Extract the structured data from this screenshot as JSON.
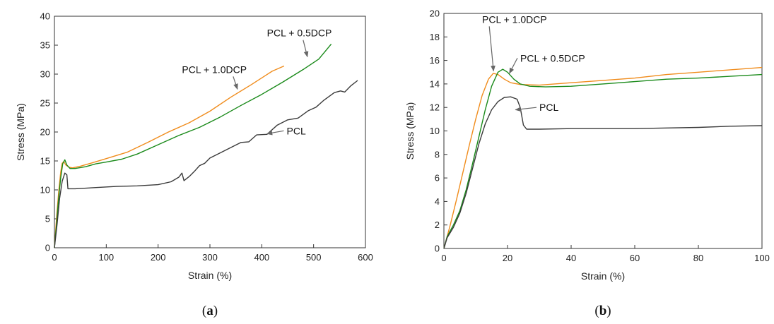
{
  "chart_data": [
    {
      "type": "line",
      "panel_label": {
        "open": "(",
        "letter": "a",
        "close": ")"
      },
      "xlabel": "Strain (%)",
      "ylabel": "Stress (MPa)",
      "xlim": [
        0,
        600
      ],
      "ylim": [
        0,
        40
      ],
      "xticks": [
        0,
        100,
        200,
        300,
        400,
        500,
        600
      ],
      "yticks": [
        0,
        5,
        10,
        15,
        20,
        25,
        30,
        35,
        40
      ],
      "grid": false,
      "series": [
        {
          "name": "PCL + 1.0DCP",
          "color": "#f08c1c",
          "points": [
            [
              0,
              0
            ],
            [
              4,
              5
            ],
            [
              8,
              9.5
            ],
            [
              12,
              13
            ],
            [
              15,
              14.6
            ],
            [
              18,
              14.9
            ],
            [
              22,
              14.3
            ],
            [
              28,
              13.9
            ],
            [
              35,
              13.8
            ],
            [
              50,
              14.1
            ],
            [
              70,
              14.6
            ],
            [
              100,
              15.4
            ],
            [
              140,
              16.5
            ],
            [
              180,
              18.2
            ],
            [
              220,
              20.0
            ],
            [
              260,
              21.6
            ],
            [
              300,
              23.6
            ],
            [
              340,
              26.0
            ],
            [
              380,
              28.2
            ],
            [
              420,
              30.5
            ],
            [
              443,
              31.4
            ]
          ]
        },
        {
          "name": "PCL + 0.5DCP",
          "color": "#1a8a1a",
          "points": [
            [
              0,
              0
            ],
            [
              4,
              4
            ],
            [
              8,
              8.5
            ],
            [
              12,
              12
            ],
            [
              16,
              14.5
            ],
            [
              20,
              15.2
            ],
            [
              24,
              14.3
            ],
            [
              30,
              13.7
            ],
            [
              40,
              13.7
            ],
            [
              60,
              14.0
            ],
            [
              80,
              14.5
            ],
            [
              100,
              14.8
            ],
            [
              130,
              15.3
            ],
            [
              160,
              16.2
            ],
            [
              200,
              17.8
            ],
            [
              240,
              19.4
            ],
            [
              280,
              20.8
            ],
            [
              320,
              22.6
            ],
            [
              360,
              24.6
            ],
            [
              400,
              26.5
            ],
            [
              440,
              28.6
            ],
            [
              480,
              30.8
            ],
            [
              510,
              32.6
            ],
            [
              534,
              35.2
            ]
          ]
        },
        {
          "name": "PCL",
          "color": "#3a3a3a",
          "points": [
            [
              0,
              0
            ],
            [
              5,
              4
            ],
            [
              10,
              8.5
            ],
            [
              15,
              11.5
            ],
            [
              20,
              12.9
            ],
            [
              24,
              12.6
            ],
            [
              26,
              10.2
            ],
            [
              40,
              10.2
            ],
            [
              80,
              10.4
            ],
            [
              120,
              10.6
            ],
            [
              160,
              10.7
            ],
            [
              200,
              10.9
            ],
            [
              225,
              11.4
            ],
            [
              240,
              12.2
            ],
            [
              246,
              12.9
            ],
            [
              250,
              11.6
            ],
            [
              260,
              12.3
            ],
            [
              270,
              13.2
            ],
            [
              280,
              14.2
            ],
            [
              290,
              14.6
            ],
            [
              300,
              15.5
            ],
            [
              320,
              16.4
            ],
            [
              340,
              17.3
            ],
            [
              360,
              18.2
            ],
            [
              375,
              18.3
            ],
            [
              390,
              19.5
            ],
            [
              410,
              19.6
            ],
            [
              430,
              21.2
            ],
            [
              450,
              22.1
            ],
            [
              470,
              22.4
            ],
            [
              490,
              23.7
            ],
            [
              505,
              24.3
            ],
            [
              520,
              25.5
            ],
            [
              540,
              26.8
            ],
            [
              552,
              27.1
            ],
            [
              560,
              26.9
            ],
            [
              572,
              28.0
            ],
            [
              585,
              28.9
            ]
          ]
        }
      ],
      "annotations": [
        {
          "text": "PCL + 0.5DCP",
          "x": 410,
          "y": 36.5,
          "arrow_to": [
            488,
            33.0
          ]
        },
        {
          "text": "PCL + 1.0DCP",
          "x": 246,
          "y": 30.2,
          "arrow_to": [
            353,
            27.4
          ]
        },
        {
          "text": "PCL",
          "x": 448,
          "y": 19.6,
          "arrow_to": [
            410,
            19.7
          ]
        }
      ]
    },
    {
      "type": "line",
      "panel_label": {
        "open": "(",
        "letter": "b",
        "close": ")"
      },
      "xlabel": "Strain (%)",
      "ylabel": "Stress (MPa)",
      "xlim": [
        0,
        100
      ],
      "ylim": [
        0,
        20
      ],
      "xticks": [
        0,
        20,
        40,
        60,
        80,
        100
      ],
      "yticks": [
        0,
        2,
        4,
        6,
        8,
        10,
        12,
        14,
        16,
        18,
        20
      ],
      "grid": false,
      "series": [
        {
          "name": "PCL + 1.0DCP",
          "color": "#f08c1c",
          "points": [
            [
              0,
              0
            ],
            [
              2,
              2.0
            ],
            [
              4,
              4.2
            ],
            [
              6,
              6.5
            ],
            [
              8,
              8.8
            ],
            [
              10,
              11.0
            ],
            [
              12,
              13.0
            ],
            [
              14,
              14.4
            ],
            [
              15.5,
              14.9
            ],
            [
              17,
              14.8
            ],
            [
              19,
              14.4
            ],
            [
              21,
              14.1
            ],
            [
              24,
              13.95
            ],
            [
              30,
              13.9
            ],
            [
              40,
              14.1
            ],
            [
              50,
              14.3
            ],
            [
              60,
              14.5
            ],
            [
              70,
              14.8
            ],
            [
              80,
              15.0
            ],
            [
              90,
              15.2
            ],
            [
              100,
              15.4
            ]
          ]
        },
        {
          "name": "PCL + 0.5DCP",
          "color": "#1a8a1a",
          "points": [
            [
              0,
              0
            ],
            [
              1,
              1.0
            ],
            [
              3,
              2.0
            ],
            [
              5,
              3.2
            ],
            [
              7,
              5.0
            ],
            [
              9,
              7.2
            ],
            [
              11,
              9.5
            ],
            [
              13,
              11.8
            ],
            [
              15,
              13.8
            ],
            [
              17,
              15.0
            ],
            [
              18.5,
              15.25
            ],
            [
              20,
              15.0
            ],
            [
              22,
              14.4
            ],
            [
              24,
              14.0
            ],
            [
              27,
              13.8
            ],
            [
              32,
              13.75
            ],
            [
              40,
              13.8
            ],
            [
              50,
              14.0
            ],
            [
              60,
              14.2
            ],
            [
              70,
              14.4
            ],
            [
              80,
              14.5
            ],
            [
              90,
              14.65
            ],
            [
              100,
              14.8
            ]
          ]
        },
        {
          "name": "PCL",
          "color": "#3a3a3a",
          "points": [
            [
              0,
              0
            ],
            [
              1,
              0.9
            ],
            [
              3,
              1.8
            ],
            [
              5,
              3.0
            ],
            [
              7,
              4.7
            ],
            [
              9,
              6.8
            ],
            [
              11,
              8.9
            ],
            [
              13,
              10.6
            ],
            [
              15,
              11.8
            ],
            [
              17,
              12.5
            ],
            [
              19,
              12.85
            ],
            [
              21,
              12.9
            ],
            [
              23,
              12.7
            ],
            [
              24,
              12.0
            ],
            [
              25,
              10.5
            ],
            [
              26,
              10.15
            ],
            [
              30,
              10.15
            ],
            [
              40,
              10.2
            ],
            [
              50,
              10.2
            ],
            [
              60,
              10.2
            ],
            [
              70,
              10.25
            ],
            [
              80,
              10.3
            ],
            [
              90,
              10.4
            ],
            [
              100,
              10.45
            ]
          ]
        }
      ],
      "annotations": [
        {
          "text": "PCL + 1.0DCP",
          "x": 12,
          "y": 19.2,
          "arrow_to": [
            15.6,
            15.1
          ]
        },
        {
          "text": "PCL + 0.5DCP",
          "x": 24,
          "y": 15.9,
          "arrow_to": [
            20.6,
            14.9
          ]
        },
        {
          "text": "PCL",
          "x": 30,
          "y": 11.7,
          "arrow_to": [
            22.5,
            11.8
          ]
        }
      ]
    }
  ]
}
